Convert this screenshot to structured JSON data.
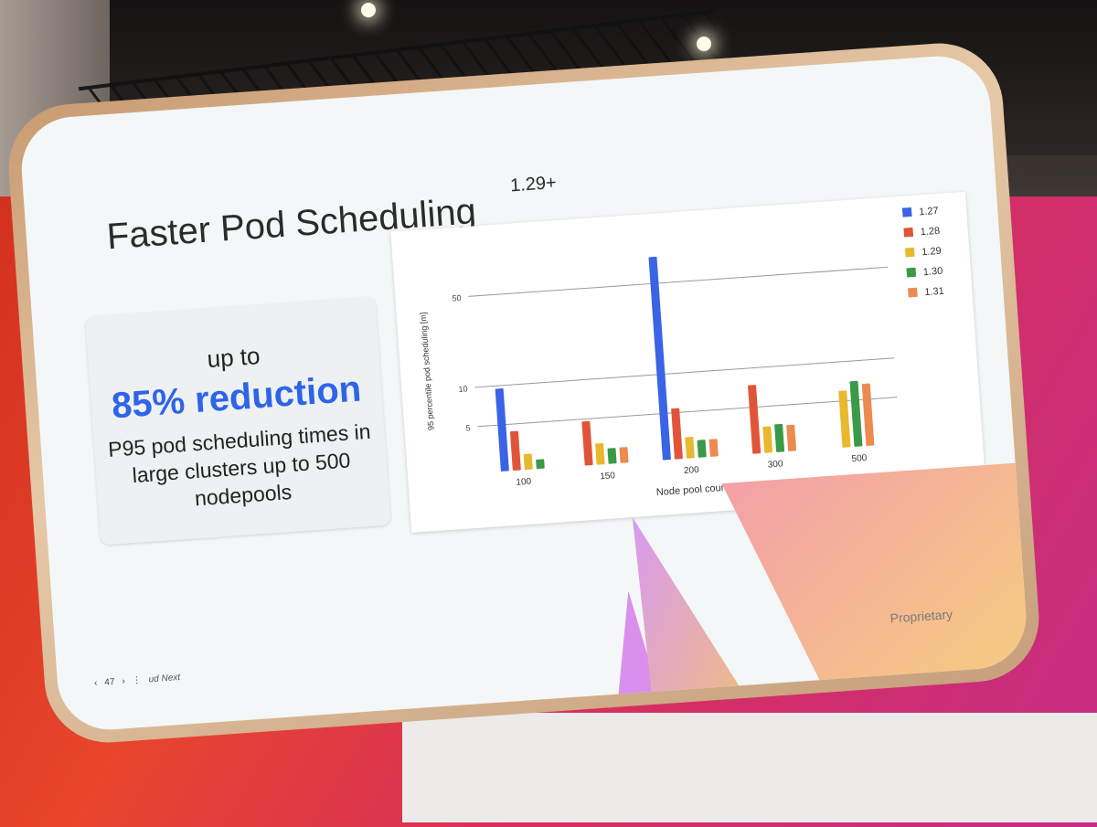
{
  "slide": {
    "title": "Faster Pod Scheduling",
    "version": "1.29+",
    "callout_up": "up to",
    "callout_big": "85% reduction",
    "callout_desc": "P95 pod scheduling times in large clusters up to 500 nodepools",
    "footer_brand": "ud Next",
    "page_number": "47",
    "footer_right": "Proprietary"
  },
  "chart_data": {
    "type": "bar",
    "xlabel": "Node pool count",
    "ylabel": "95 percentile pod scheduling [m]",
    "categories": [
      "100",
      "150",
      "200",
      "300",
      "500"
    ],
    "y_ticks": [
      "5",
      "10",
      "50"
    ],
    "yscale": "log",
    "series": [
      {
        "name": "1.27",
        "color": "#3b63e6",
        "values": [
          9.5,
          null,
          80,
          null,
          null
        ]
      },
      {
        "name": "1.28",
        "color": "#e0553a",
        "values": [
          4.4,
          4.8,
          5.4,
          7.4,
          null
        ]
      },
      {
        "name": "1.29",
        "color": "#e8b92e",
        "values": [
          2.9,
          3.2,
          3.2,
          3.5,
          6.0
        ]
      },
      {
        "name": "1.30",
        "color": "#3a9a48",
        "values": [
          2.6,
          2.9,
          3.0,
          3.6,
          7.0
        ]
      },
      {
        "name": "1.31",
        "color": "#ec8a4f",
        "values": [
          null,
          2.9,
          3.0,
          3.5,
          6.6
        ]
      }
    ],
    "legend": "top-right"
  }
}
